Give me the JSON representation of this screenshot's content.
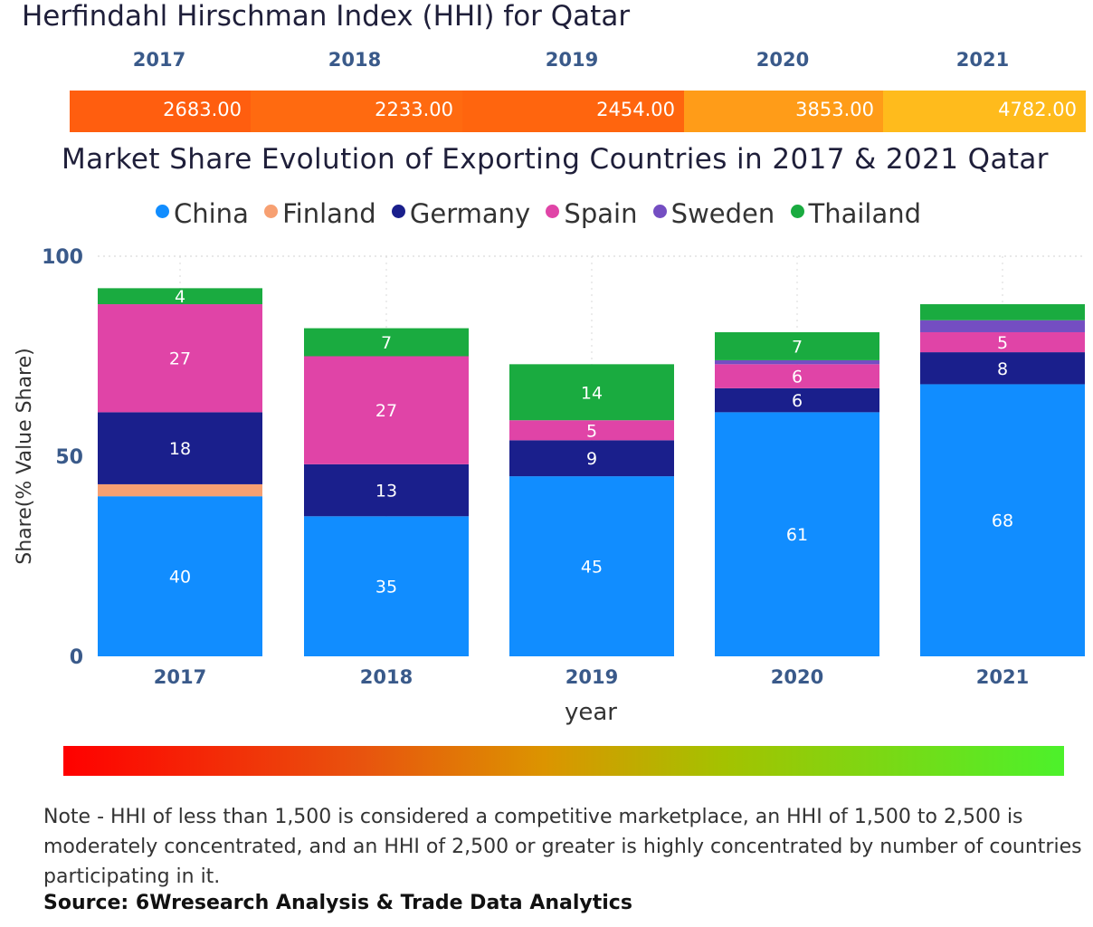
{
  "hhi": {
    "title": "Herfindahl Hirschman Index (HHI) for Qatar",
    "years": [
      "2017",
      "2018",
      "2019",
      "2020",
      "2021"
    ],
    "values": [
      "2683.00",
      "2233.00",
      "2454.00",
      "3853.00",
      "4782.00"
    ],
    "colors": [
      "#ff5e0f",
      "#ff6a10",
      "#ff650e",
      "#ff9c18",
      "#ffbb1c"
    ]
  },
  "chart_data": {
    "type": "bar",
    "stacked": true,
    "title": "Market Share Evolution of Exporting Countries in 2017 & 2021 Qatar",
    "xlabel": "year",
    "ylabel": "Share(% Value Share)",
    "ylim": [
      0,
      100
    ],
    "yticks": [
      "0",
      "50",
      "100"
    ],
    "categories": [
      "2017",
      "2018",
      "2019",
      "2020",
      "2021"
    ],
    "legend": {
      "position": "top"
    },
    "series": [
      {
        "name": "China",
        "color": "#118dff",
        "values": [
          40,
          35,
          45,
          61,
          68
        ],
        "labels": [
          "40",
          "35",
          "45",
          "61",
          "68"
        ]
      },
      {
        "name": "Finland",
        "color": "#f7a072",
        "values": [
          3,
          0,
          0,
          0,
          0
        ],
        "labels": [
          "",
          "",
          "",
          "",
          ""
        ]
      },
      {
        "name": "Germany",
        "color": "#1a1f8c",
        "values": [
          18,
          13,
          9,
          6,
          8
        ],
        "labels": [
          "18",
          "13",
          "9",
          "6",
          "8"
        ]
      },
      {
        "name": "Spain",
        "color": "#e044a7",
        "values": [
          27,
          27,
          5,
          6,
          5
        ],
        "labels": [
          "27",
          "27",
          "5",
          "6",
          "5"
        ]
      },
      {
        "name": "Sweden",
        "color": "#744ec2",
        "values": [
          0,
          0,
          0,
          1,
          3
        ],
        "labels": [
          "",
          "",
          "",
          "",
          ""
        ]
      },
      {
        "name": "Thailand",
        "color": "#1aab40",
        "values": [
          4,
          7,
          14,
          7,
          4
        ],
        "labels": [
          "4",
          "7",
          "14",
          "7",
          ""
        ]
      }
    ]
  },
  "note": "Note - HHI of less than 1,500 is considered a competitive marketplace, an HHI of 1,500 to 2,500 is moderately concentrated, and an HHI of 2,500 or greater is highly concentrated by number of countries participating in it.",
  "source": "Source: 6Wresearch Analysis & Trade Data Analytics"
}
